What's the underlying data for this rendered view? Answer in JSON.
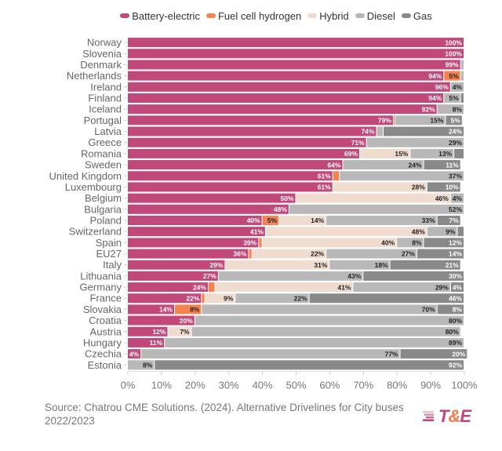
{
  "chart_data": {
    "type": "bar",
    "orientation": "horizontal",
    "stacked": true,
    "title": "",
    "xlabel": "",
    "ylabel": "",
    "xlim": [
      0,
      100
    ],
    "x_ticks": [
      "0%",
      "10%",
      "20%",
      "30%",
      "40%",
      "50%",
      "60%",
      "70%",
      "80%",
      "90%",
      "100%"
    ],
    "grid": false,
    "legend_position": "top-center",
    "categories": [
      "Norway",
      "Slovenia",
      "Denmark",
      "Netherlands",
      "Ireland",
      "Finland",
      "Iceland",
      "Portugal",
      "Latvia",
      "Greece",
      "Romania",
      "Sweden",
      "United Kingdom",
      "Luxembourg",
      "Belgium",
      "Bulgaria",
      "Poland",
      "Switzerland",
      "Spain",
      "EU27",
      "Italy",
      "Lithuania",
      "Germany",
      "France",
      "Slovakia",
      "Croatia",
      "Austria",
      "Hungary",
      "Czechia",
      "Estonia"
    ],
    "series": [
      {
        "name": "Battery-electric",
        "color": "#c0497a",
        "label_color": "#ffffff",
        "values": [
          100,
          100,
          99,
          94,
          96,
          94,
          92,
          79,
          74,
          71,
          69,
          64,
          61,
          61,
          50,
          48,
          40,
          41,
          39,
          36,
          29,
          27,
          24,
          22,
          14,
          20,
          12,
          11,
          4,
          0
        ]
      },
      {
        "name": "Fuel cell hydrogen",
        "color": "#f4834f",
        "label_color": "#222222",
        "values": [
          0,
          0,
          0,
          5,
          0,
          0,
          0,
          0.5,
          0,
          0,
          0,
          0,
          2,
          0,
          0,
          0,
          5,
          0,
          1,
          1,
          0,
          0,
          2,
          1,
          8,
          0,
          0,
          0,
          0,
          0
        ]
      },
      {
        "name": "Hybrid",
        "color": "#f0dccf",
        "label_color": "#222222",
        "values": [
          0,
          0,
          0,
          0,
          0,
          0,
          0,
          0,
          0,
          0,
          15,
          0,
          0,
          28,
          46,
          0,
          14,
          48,
          40,
          22,
          31,
          0,
          41,
          9,
          0,
          0,
          7,
          0,
          0,
          0
        ]
      },
      {
        "name": "Diesel",
        "color": "#b8b8b8",
        "label_color": "#222222",
        "values": [
          0,
          0,
          1,
          1,
          4,
          5,
          8,
          15,
          2,
          29,
          13,
          24,
          37,
          0,
          4,
          52,
          33,
          9,
          8,
          27,
          18,
          43,
          29,
          22,
          70,
          80,
          80,
          89,
          77,
          8
        ]
      },
      {
        "name": "Gas",
        "color": "#898989",
        "label_color": "#ffffff",
        "values": [
          0,
          0,
          0,
          0,
          0,
          1,
          0,
          5,
          24,
          0,
          3,
          11,
          0,
          10,
          0,
          0,
          7,
          2,
          12,
          14,
          21,
          30,
          4,
          46,
          8,
          0,
          0,
          0,
          20,
          92
        ]
      }
    ],
    "labels": [
      [
        "100%",
        "",
        "",
        "",
        ""
      ],
      [
        "100%",
        "",
        "",
        "",
        ""
      ],
      [
        "99%",
        "",
        "",
        "",
        ""
      ],
      [
        "94%",
        "5%",
        "",
        "",
        ""
      ],
      [
        "96%",
        "",
        "",
        "4%",
        ""
      ],
      [
        "94%",
        "",
        "",
        "5%",
        ""
      ],
      [
        "92%",
        "",
        "",
        "8%",
        ""
      ],
      [
        "79%",
        "",
        "",
        "15%",
        "5%"
      ],
      [
        "74%",
        "",
        "",
        "",
        "24%"
      ],
      [
        "71%",
        "",
        "",
        "29%",
        ""
      ],
      [
        "69%",
        "",
        "15%",
        "13%",
        ""
      ],
      [
        "64%",
        "",
        "",
        "24%",
        "11%"
      ],
      [
        "61%",
        "",
        "",
        "37%",
        ""
      ],
      [
        "61%",
        "",
        "28%",
        "",
        "10%"
      ],
      [
        "50%",
        "",
        "46%",
        "4%",
        ""
      ],
      [
        "48%",
        "",
        "",
        "52%",
        ""
      ],
      [
        "40%",
        "5%",
        "14%",
        "33%",
        "7%"
      ],
      [
        "41%",
        "",
        "48%",
        "9%",
        ""
      ],
      [
        "39%",
        "",
        "40%",
        "8%",
        "12%"
      ],
      [
        "36%",
        "",
        "22%",
        "27%",
        "14%"
      ],
      [
        "29%",
        "",
        "31%",
        "18%",
        "21%"
      ],
      [
        "27%",
        "",
        "",
        "43%",
        "30%"
      ],
      [
        "24%",
        "",
        "41%",
        "29%",
        "4%"
      ],
      [
        "22%",
        "",
        "9%",
        "22%",
        "46%"
      ],
      [
        "14%",
        "8%",
        "",
        "70%",
        "8%"
      ],
      [
        "20%",
        "",
        "",
        "80%",
        ""
      ],
      [
        "12%",
        "",
        "7%",
        "80%",
        ""
      ],
      [
        "11%",
        "",
        "",
        "89%",
        ""
      ],
      [
        "4%",
        "",
        "",
        "77%",
        "20%"
      ],
      [
        "",
        "",
        "",
        "8%",
        "92%"
      ]
    ]
  },
  "legend": [
    {
      "label": "Battery-electric",
      "color": "#c0497a"
    },
    {
      "label": "Fuel cell hydrogen",
      "color": "#f4834f"
    },
    {
      "label": "Hybrid",
      "color": "#f0dccf"
    },
    {
      "label": "Diesel",
      "color": "#b8b8b8"
    },
    {
      "label": "Gas",
      "color": "#898989"
    }
  ],
  "footer": {
    "source": "Source: Chatrou CME Solutions. (2024). Alternative Drivelines for City buses 2022/2023",
    "logo_prefix": "T",
    "logo_amp": "&",
    "logo_suffix": "E"
  }
}
